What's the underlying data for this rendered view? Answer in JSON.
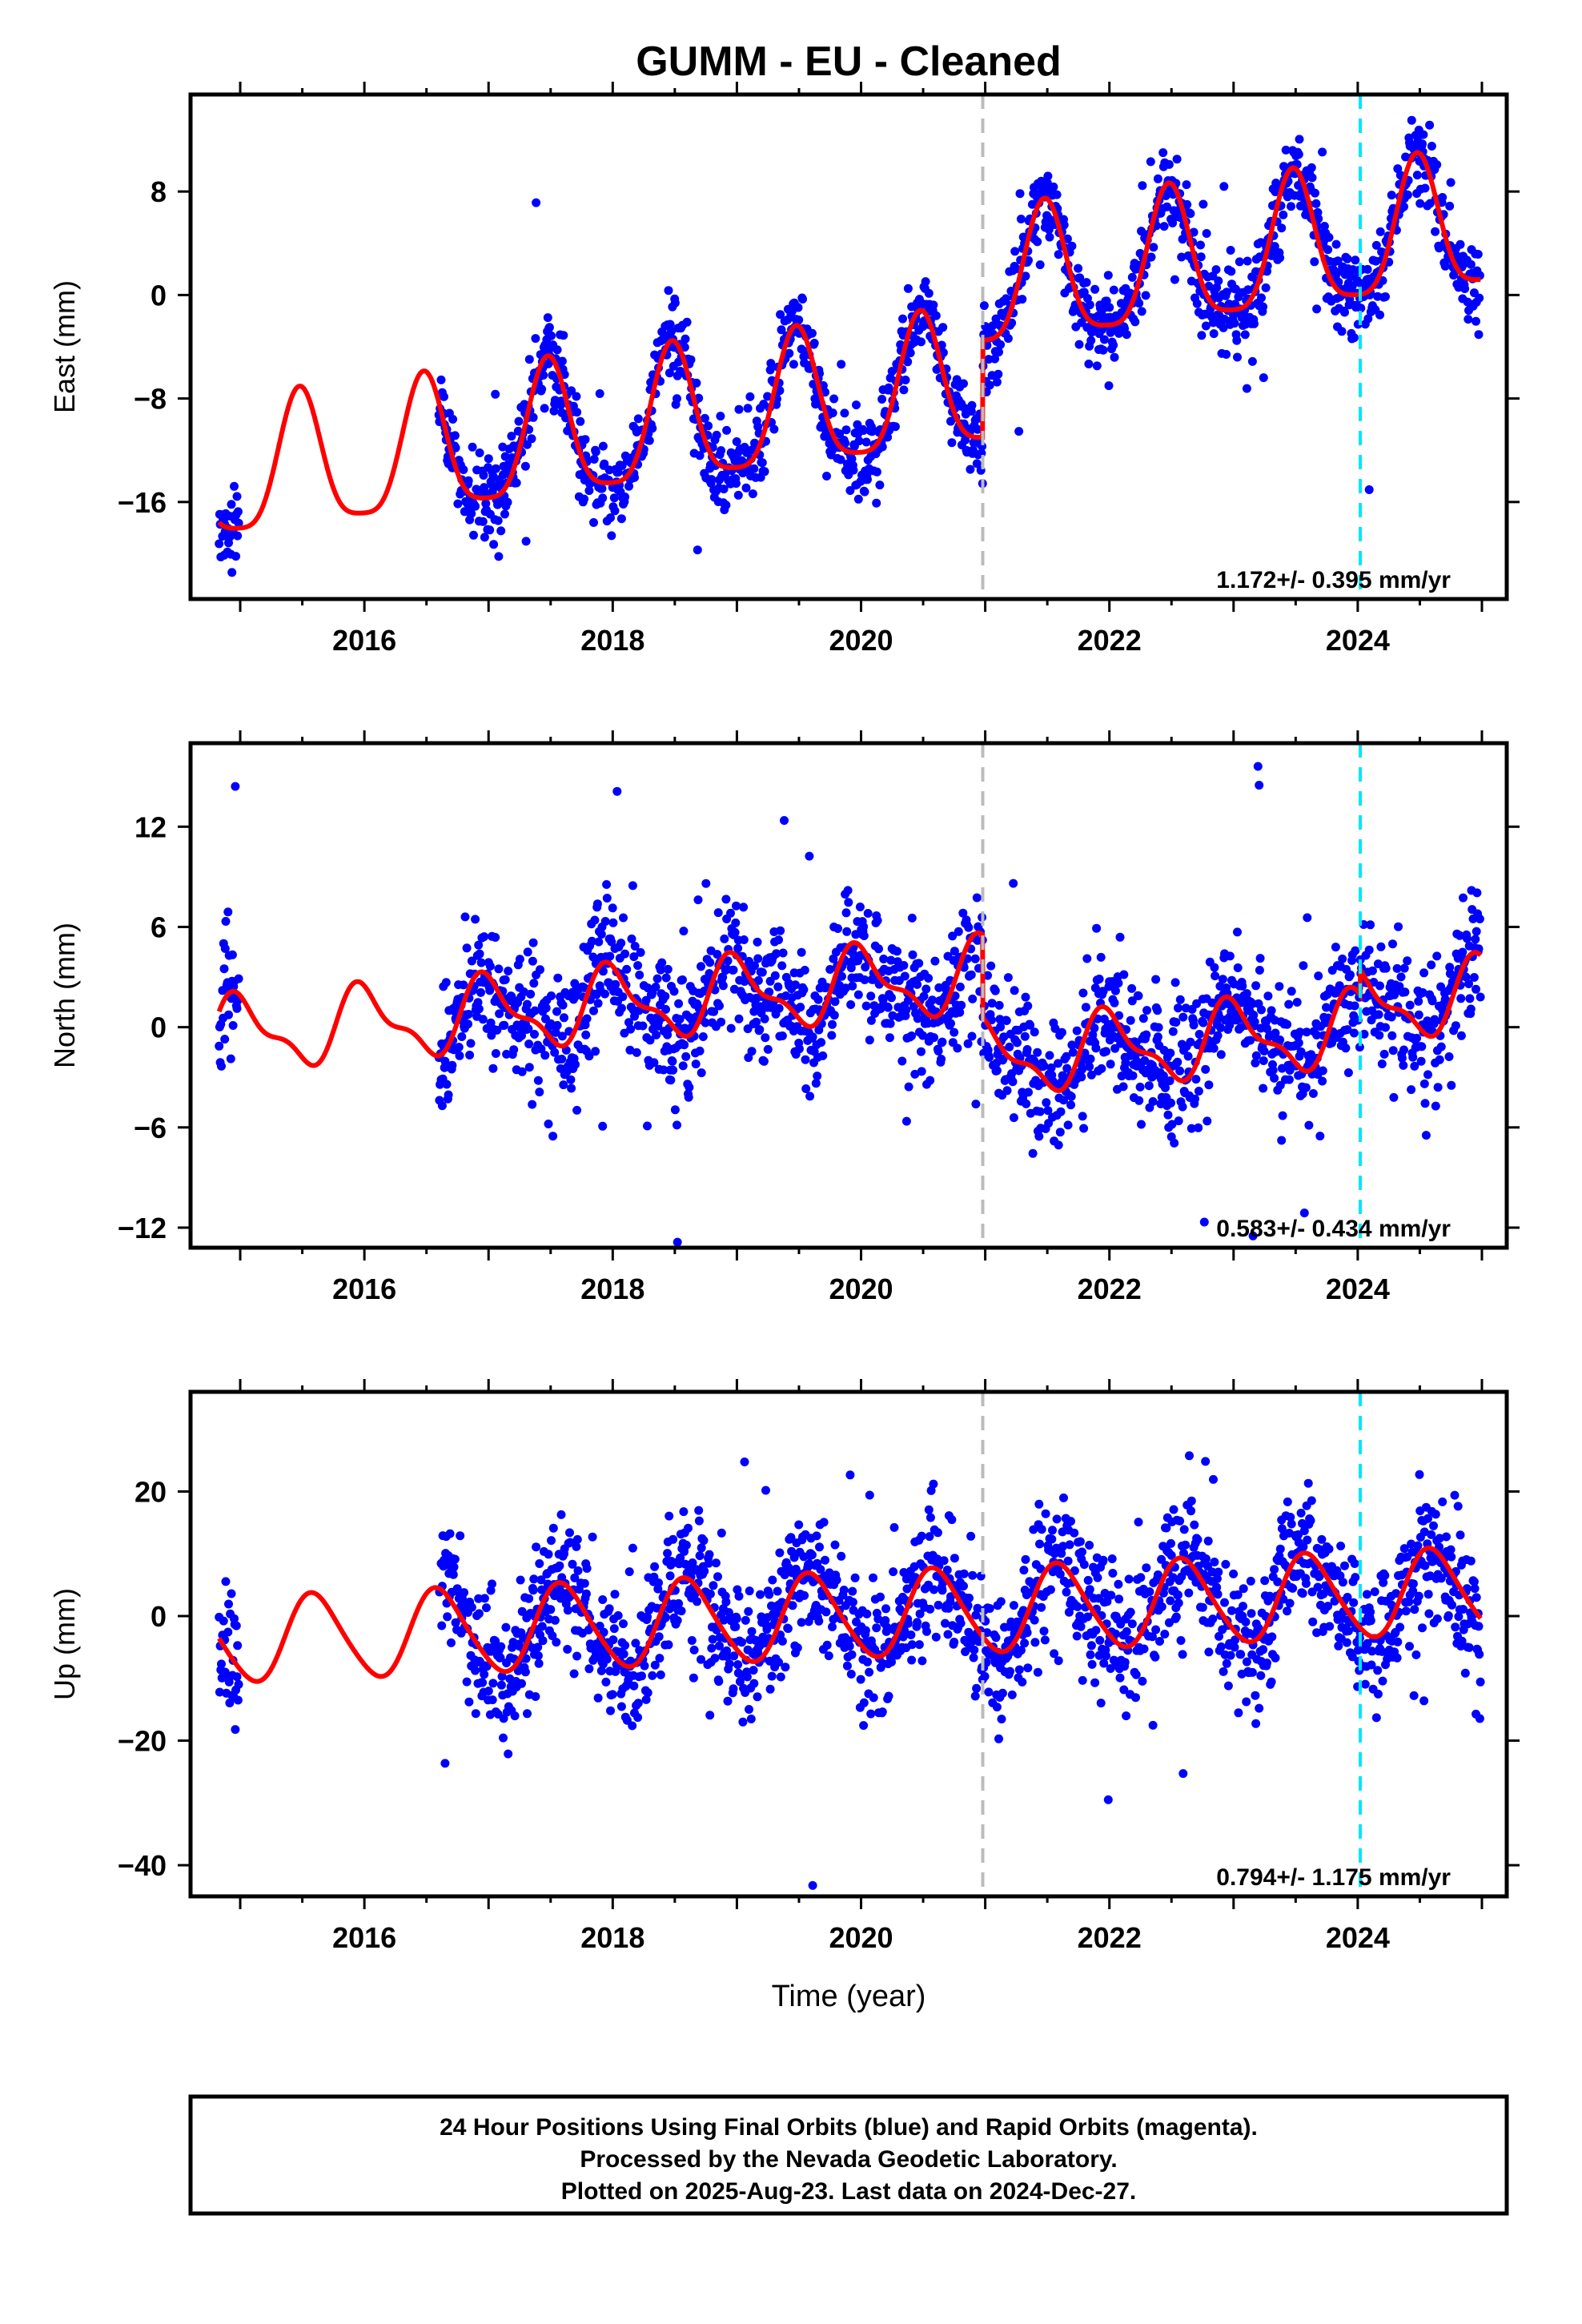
{
  "title": "GUMM  - EU - Cleaned",
  "xlabel": "Time (year)",
  "caption": [
    "24 Hour Positions Using Final Orbits (blue) and Rapid Orbits (magenta).",
    "Processed by the Nevada Geodetic Laboratory.",
    "Plotted on 2025-Aug-23. Last data on 2024-Dec-27."
  ],
  "colors": {
    "data": "#0000ff",
    "model": "#ff0000",
    "break_gray": "#bbbbbb",
    "break_cyan": "#00e5ff",
    "frame": "#000000"
  },
  "chart_data": [
    {
      "type": "scatter",
      "title": "GUMM  - EU - Cleaned",
      "ylabel": "East (mm)",
      "xlim": [
        2014.6,
        2025.2
      ],
      "ylim": [
        -23.5,
        15.5
      ],
      "xticks": [
        "2016",
        "2018",
        "2020",
        "2022",
        "2024"
      ],
      "yticks": [
        "8",
        "0",
        "−8",
        "−16"
      ],
      "ytick_values": [
        8,
        0,
        -8,
        -16
      ],
      "rate_text": "1.172+/- 0.395 mm/yr",
      "rate_mm_per_yr": 1.172,
      "rate_sigma": 0.395,
      "breaks": [
        2020.98,
        2024.02
      ],
      "data_spans": [
        [
          2014.83,
          2014.99
        ],
        [
          2016.6,
          2024.99
        ]
      ],
      "model_start": 2014.83,
      "model": {
        "offset": -14.2,
        "trend": 1.172,
        "t0": 2014.83,
        "amp_ann": 5.2,
        "ann_peak": 2015.48,
        "amp_semi": 1.2,
        "semi_phase": 0.3,
        "steps": [
          {
            "t": 2020.98,
            "dy": 7.5
          }
        ]
      },
      "scatter": {
        "noise": 1.6,
        "outliers": 0.03
      }
    },
    {
      "type": "scatter",
      "ylabel": "North (mm)",
      "xlim": [
        2014.6,
        2025.2
      ],
      "ylim": [
        -13.2,
        17.0
      ],
      "xticks": [
        "2016",
        "2018",
        "2020",
        "2022",
        "2024"
      ],
      "yticks": [
        "12",
        "6",
        "0",
        "−6",
        "−12"
      ],
      "ytick_values": [
        12,
        6,
        0,
        -6,
        -12
      ],
      "rate_text": "0.583+/- 0.434 mm/yr",
      "rate_mm_per_yr": 0.583,
      "rate_sigma": 0.434,
      "breaks": [
        2020.98,
        2024.02
      ],
      "data_spans": [
        [
          2014.83,
          2014.99
        ],
        [
          2016.6,
          2024.99
        ]
      ],
      "model_start": 2014.83,
      "model": {
        "offset": -0.5,
        "trend": 0.583,
        "t0": 2014.83,
        "amp_ann": 2.0,
        "ann_peak": 2015.0,
        "amp_semi": 0.8,
        "semi_phase": 1.2,
        "steps": [
          {
            "t": 2020.98,
            "dy": -5.0
          },
          {
            "t": 2024.02,
            "dy": 1.5
          }
        ]
      },
      "scatter": {
        "noise": 1.9,
        "outliers": 0.04
      }
    },
    {
      "type": "scatter",
      "ylabel": "Up (mm)",
      "xlim": [
        2014.6,
        2025.2
      ],
      "ylim": [
        -45.0,
        36.0
      ],
      "xticks": [
        "2016",
        "2018",
        "2020",
        "2022",
        "2024"
      ],
      "yticks": [
        "20",
        "0",
        "−20",
        "−40"
      ],
      "ytick_values": [
        20,
        0,
        -20,
        -40
      ],
      "rate_text": "0.794+/- 1.175 mm/yr",
      "rate_mm_per_yr": 0.794,
      "rate_sigma": 1.175,
      "breaks": [
        2020.98,
        2024.02
      ],
      "data_spans": [
        [
          2014.83,
          2014.99
        ],
        [
          2016.6,
          2024.99
        ]
      ],
      "model_start": 2014.83,
      "model": {
        "offset": -4.0,
        "trend": 0.794,
        "t0": 2014.83,
        "amp_ann": 6.8,
        "ann_peak": 2015.6,
        "amp_semi": 0.8,
        "semi_phase": 0.0,
        "steps": []
      },
      "scatter": {
        "noise": 5.2,
        "outliers": 0.03
      }
    }
  ]
}
